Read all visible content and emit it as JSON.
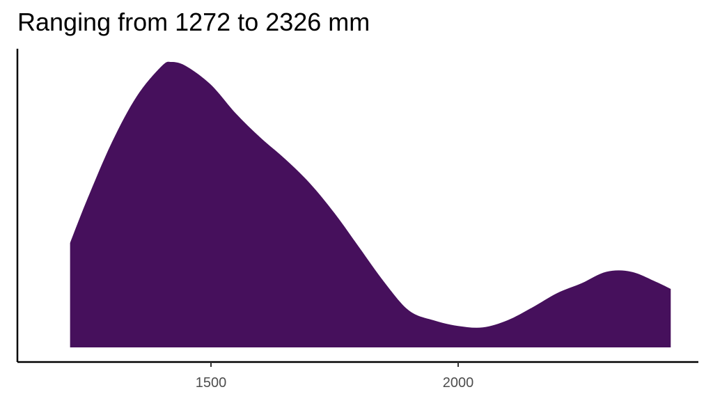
{
  "chart_data": {
    "type": "area",
    "title": "Ranging from 1272 to 2326 mm",
    "xlabel": "",
    "ylabel": "",
    "xlim": [
      1150,
      2475
    ],
    "ylim": [
      0,
      1.0
    ],
    "x_ticks": [
      1500,
      2000
    ],
    "x_tick_labels": [
      "1500",
      "2000"
    ],
    "grid": false,
    "legend": "none",
    "fill_color": "#46105c",
    "x": [
      1215,
      1250,
      1300,
      1350,
      1400,
      1420,
      1450,
      1500,
      1550,
      1600,
      1650,
      1700,
      1750,
      1800,
      1850,
      1900,
      1950,
      2000,
      2050,
      2100,
      2150,
      2200,
      2250,
      2300,
      2350,
      2400,
      2430
    ],
    "y": [
      0.366,
      0.52,
      0.72,
      0.88,
      0.985,
      1.0,
      0.985,
      0.92,
      0.82,
      0.735,
      0.66,
      0.575,
      0.47,
      0.35,
      0.23,
      0.13,
      0.095,
      0.075,
      0.07,
      0.095,
      0.14,
      0.19,
      0.225,
      0.265,
      0.265,
      0.23,
      0.205
    ]
  }
}
